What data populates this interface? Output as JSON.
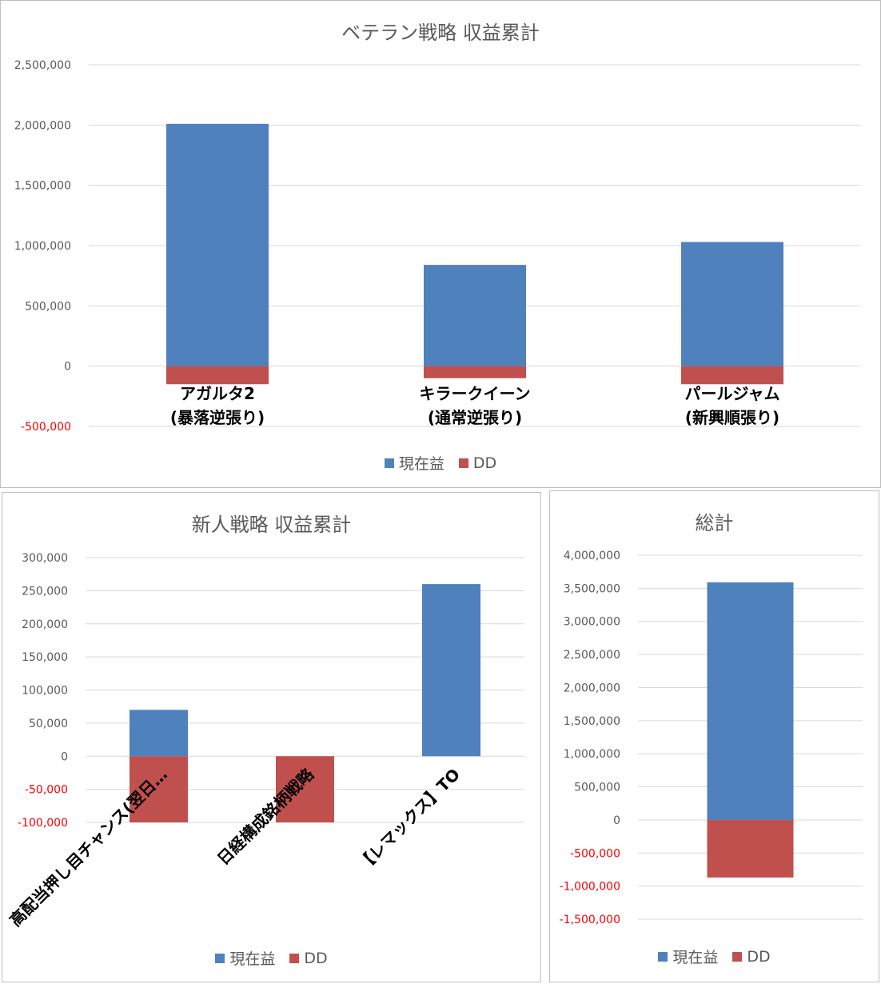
{
  "colors": {
    "current": "#4f81bd",
    "dd": "#c0504d",
    "grid": "#d9d9d9",
    "negative_tick": "#ff0000"
  },
  "legend": {
    "series1": "現在益",
    "series2": "DD"
  },
  "chart_data": [
    {
      "type": "bar",
      "title": "ベテラン戦略 収益累計",
      "categories": [
        "アガルタ2\n(暴落逆張り)",
        "キラークイーン\n(通常逆張り)",
        "パールジャム\n(新興順張り)"
      ],
      "series": [
        {
          "name": "現在益",
          "values": [
            2010000,
            840000,
            1030000
          ]
        },
        {
          "name": "DD",
          "values": [
            -150000,
            -100000,
            -150000
          ]
        }
      ],
      "ylim": [
        -500000,
        2500000
      ],
      "yticks": [
        2500000,
        2000000,
        1500000,
        1000000,
        500000,
        0,
        -500000
      ],
      "ytick_labels": [
        "2,500,000",
        "2,000,000",
        "1,500,000",
        "1,000,000",
        "500,000",
        "0",
        "-500,000"
      ],
      "grid": true,
      "legend_position": "bottom"
    },
    {
      "type": "bar",
      "title": "新人戦略 収益累計",
      "categories": [
        "高配当押し目チャンス(翌日…",
        "日経構成銘柄戦略",
        "【レマックス】TO"
      ],
      "series": [
        {
          "name": "現在益",
          "values": [
            70000,
            0,
            260000
          ]
        },
        {
          "name": "DD",
          "values": [
            -100000,
            -100000,
            0
          ]
        }
      ],
      "ylim": [
        -100000,
        300000
      ],
      "yticks": [
        300000,
        250000,
        200000,
        150000,
        100000,
        50000,
        0,
        -50000,
        -100000
      ],
      "ytick_labels": [
        "300,000",
        "250,000",
        "200,000",
        "150,000",
        "100,000",
        "50,000",
        "0",
        "-50,000",
        "-100,000"
      ],
      "grid": true,
      "legend_position": "bottom"
    },
    {
      "type": "bar",
      "title": "総計",
      "categories": [
        ""
      ],
      "series": [
        {
          "name": "現在益",
          "values": [
            3590000
          ]
        },
        {
          "name": "DD",
          "values": [
            -870000
          ]
        }
      ],
      "ylim": [
        -1500000,
        4000000
      ],
      "yticks": [
        4000000,
        3500000,
        3000000,
        2500000,
        2000000,
        1500000,
        1000000,
        500000,
        0,
        -500000,
        -1000000,
        -1500000
      ],
      "ytick_labels": [
        "4,000,000",
        "3,500,000",
        "3,000,000",
        "2,500,000",
        "2,000,000",
        "1,500,000",
        "1,000,000",
        "500,000",
        "0",
        "-500,000",
        "-1,000,000",
        "-1,500,000"
      ],
      "grid": true,
      "legend_position": "bottom"
    }
  ]
}
